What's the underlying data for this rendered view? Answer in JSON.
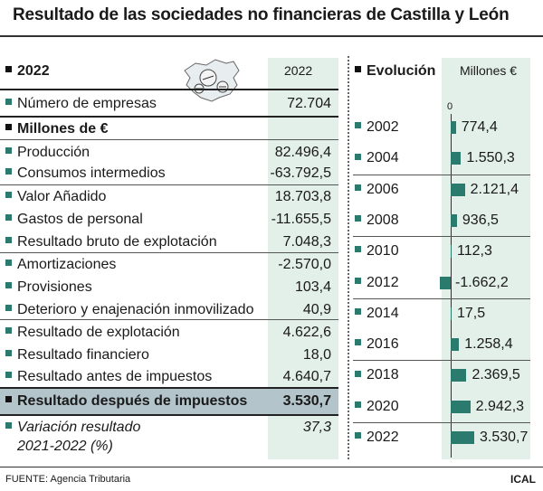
{
  "title": "Resultado de las sociedades no financieras de Castilla y León",
  "left": {
    "header_label": "2022",
    "column_label": "2022",
    "rows": [
      {
        "label": "Número de empresas",
        "value": "72.704"
      },
      {
        "label": "Millones de €",
        "value": ""
      },
      {
        "label": "Producción",
        "value": "82.496,4"
      },
      {
        "label": "Consumos intermedios",
        "value": "-63.792,5"
      },
      {
        "label": "Valor Añadido",
        "value": "18.703,8"
      },
      {
        "label": "Gastos de personal",
        "value": "-11.655,5"
      },
      {
        "label": "Resultado bruto de explotación",
        "value": "7.048,3"
      },
      {
        "label": "Amortizaciones",
        "value": "-2.570,0"
      },
      {
        "label": "Provisiones",
        "value": "103,4"
      },
      {
        "label": "Deterioro y enajenación inmovilizado",
        "value": "40,9"
      },
      {
        "label": "Resultado de explotación",
        "value": "4.622,6"
      },
      {
        "label": "Resultado financiero",
        "value": "18,0"
      },
      {
        "label": "Resultado antes de impuestos",
        "value": "4.640,7"
      },
      {
        "label": "Resultado después de impuestos",
        "value": "3.530,7"
      }
    ],
    "variation": {
      "label_line1": "Variación resultado",
      "label_line2": "2021-2022 (%)",
      "value": "37,3"
    }
  },
  "right": {
    "header_label": "Evolución",
    "unit_label": "Millones €",
    "zero_label": "0"
  },
  "chart_data": {
    "type": "bar",
    "orientation": "horizontal",
    "title": "Evolución",
    "ylabel": "Millones €",
    "categories": [
      "2002",
      "2004",
      "2006",
      "2008",
      "2010",
      "2012",
      "2014",
      "2016",
      "2018",
      "2020",
      "2022"
    ],
    "values": [
      774.4,
      1550.3,
      2121.4,
      936.5,
      112.3,
      -1662.2,
      17.5,
      1258.4,
      2369.5,
      2942.3,
      3530.7
    ],
    "value_labels": [
      "774,4",
      "1.550,3",
      "2.121,4",
      "936,5",
      "112,3",
      "-1.662,2",
      "17,5",
      "1.258,4",
      "2.369,5",
      "2.942,3",
      "3.530,7"
    ],
    "bar_color": "#2a7a6d"
  },
  "footer": {
    "source": "FUENTE: Agencia Tributaria",
    "brand": "ICAL"
  }
}
